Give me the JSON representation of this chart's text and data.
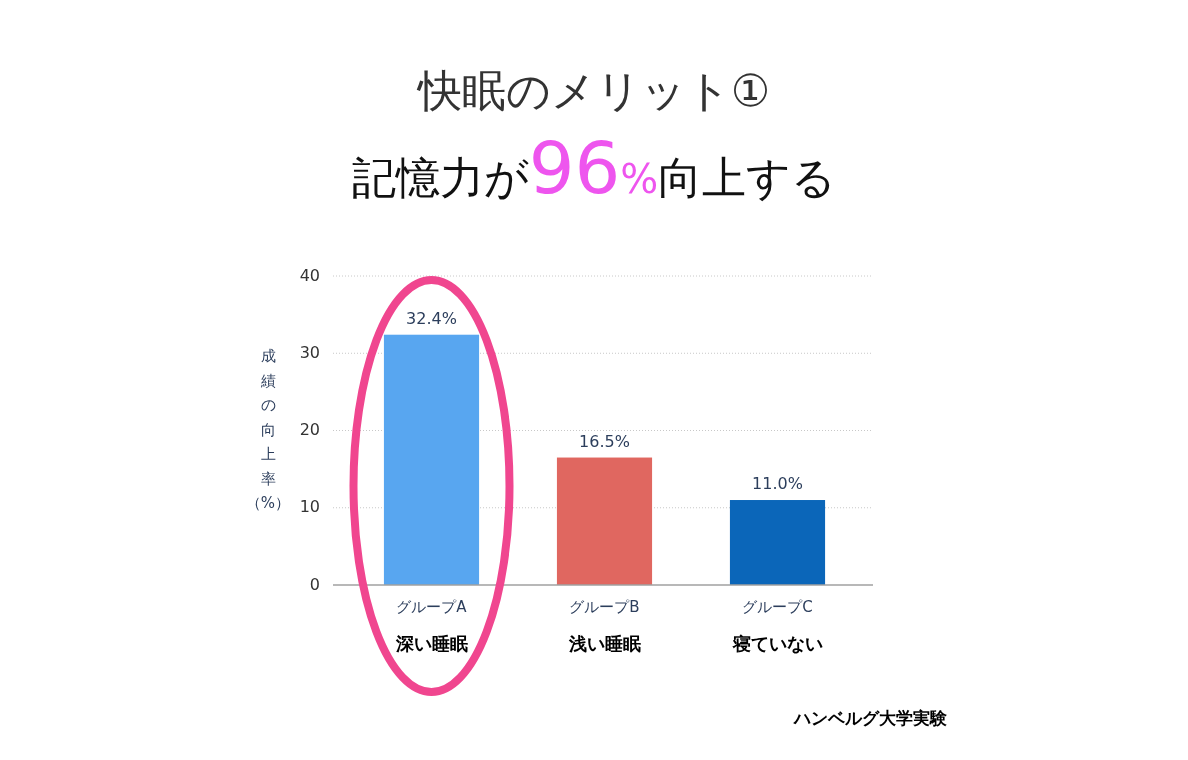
{
  "chart_data": {
    "type": "bar",
    "title": "快眠のメリット①",
    "subtitle": "記憶力が96%向上する",
    "ylabel": "成績の向上率（%）",
    "categories": [
      "グループA\n深い睡眠",
      "グループB\n浅い睡眠",
      "グループC\n寝ていない"
    ],
    "values": [
      32.4,
      16.5,
      11.0
    ],
    "colors": [
      "#58a6f0",
      "#e06760",
      "#0b66b9"
    ],
    "value_labels": [
      "32.4%",
      "16.5%",
      "11.0%"
    ],
    "ylim": [
      0,
      40
    ],
    "yticks": [
      0,
      10,
      20,
      30,
      40
    ],
    "grid": "y",
    "annotations": [
      "ハンベルグ大学実験"
    ]
  }
}
